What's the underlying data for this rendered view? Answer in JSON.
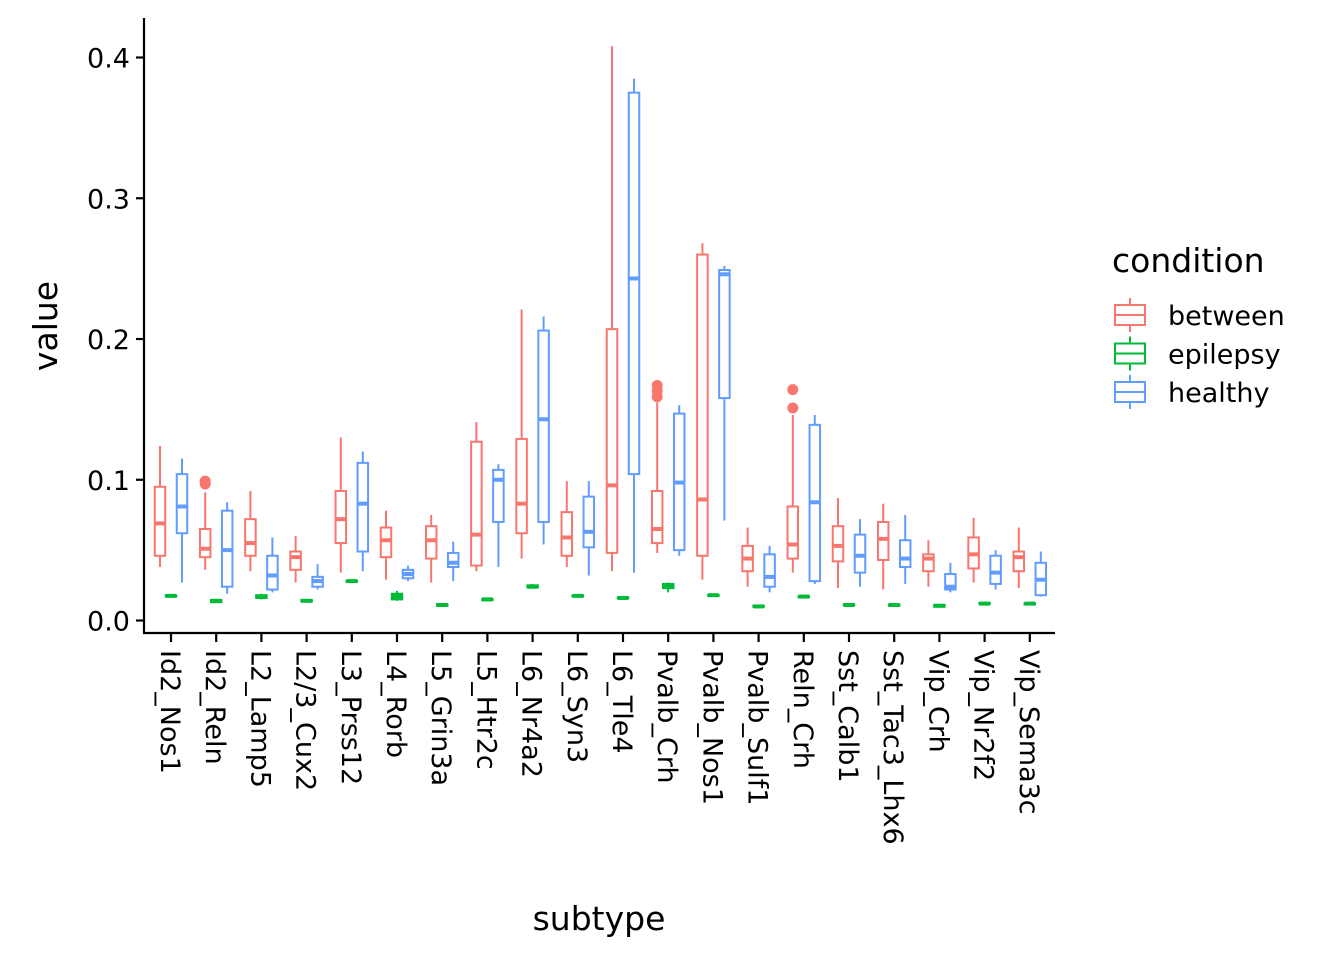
{
  "chart_data": {
    "type": "boxplot",
    "xlabel": "subtype",
    "ylabel": "value",
    "ylim": [
      -0.01,
      0.43
    ],
    "yticks": [
      "0.0",
      "0.1",
      "0.2",
      "0.3",
      "0.4"
    ],
    "categories": [
      "Id2_Nos1",
      "Id2_Reln",
      "L2_Lamp5",
      "L2/3_Cux2",
      "L3_Prss12",
      "L4_Rorb",
      "L5_Grin3a",
      "L5_Htr2c",
      "L6_Nr4a2",
      "L6_Syn3",
      "L6_Tle4",
      "Pvalb_Crh",
      "Pvalb_Nos1",
      "Pvalb_Sulf1",
      "Reln_Crh",
      "Sst_Calb1",
      "Sst_Tac3_Lhx6",
      "Vip_Crh",
      "Vip_Nr2f2",
      "Vip_Sema3c"
    ],
    "legend": {
      "title": "condition",
      "position": "right",
      "entries": [
        {
          "name": "between",
          "color": "#F8766D"
        },
        {
          "name": "epilepsy",
          "color": "#00BA38"
        },
        {
          "name": "healthy",
          "color": "#619CFF"
        }
      ]
    },
    "series": [
      {
        "name": "between",
        "color": "#F8766D",
        "boxes": [
          {
            "category": "Id2_Nos1",
            "min": 0.038,
            "q1": 0.046,
            "median": 0.069,
            "q3": 0.095,
            "max": 0.124,
            "outliers": []
          },
          {
            "category": "Id2_Reln",
            "min": 0.036,
            "q1": 0.045,
            "median": 0.051,
            "q3": 0.065,
            "max": 0.091,
            "outliers": [
              0.097,
              0.099
            ]
          },
          {
            "category": "L2_Lamp5",
            "min": 0.035,
            "q1": 0.046,
            "median": 0.055,
            "q3": 0.072,
            "max": 0.092,
            "outliers": []
          },
          {
            "category": "L2/3_Cux2",
            "min": 0.027,
            "q1": 0.036,
            "median": 0.045,
            "q3": 0.049,
            "max": 0.06,
            "outliers": []
          },
          {
            "category": "L3_Prss12",
            "min": 0.034,
            "q1": 0.055,
            "median": 0.072,
            "q3": 0.092,
            "max": 0.13,
            "outliers": []
          },
          {
            "category": "L4_Rorb",
            "min": 0.029,
            "q1": 0.045,
            "median": 0.057,
            "q3": 0.066,
            "max": 0.078,
            "outliers": []
          },
          {
            "category": "L5_Grin3a",
            "min": 0.027,
            "q1": 0.044,
            "median": 0.057,
            "q3": 0.067,
            "max": 0.075,
            "outliers": []
          },
          {
            "category": "L5_Htr2c",
            "min": 0.035,
            "q1": 0.039,
            "median": 0.061,
            "q3": 0.127,
            "max": 0.141,
            "outliers": []
          },
          {
            "category": "L6_Nr4a2",
            "min": 0.044,
            "q1": 0.062,
            "median": 0.083,
            "q3": 0.129,
            "max": 0.221,
            "outliers": []
          },
          {
            "category": "L6_Syn3",
            "min": 0.038,
            "q1": 0.046,
            "median": 0.059,
            "q3": 0.077,
            "max": 0.099,
            "outliers": []
          },
          {
            "category": "L6_Tle4",
            "min": 0.035,
            "q1": 0.048,
            "median": 0.096,
            "q3": 0.207,
            "max": 0.408,
            "outliers": []
          },
          {
            "category": "Pvalb_Crh",
            "min": 0.048,
            "q1": 0.055,
            "median": 0.065,
            "q3": 0.092,
            "max": 0.155,
            "outliers": [
              0.159,
              0.163,
              0.167
            ]
          },
          {
            "category": "Pvalb_Nos1",
            "min": 0.029,
            "q1": 0.046,
            "median": 0.086,
            "q3": 0.26,
            "max": 0.268,
            "outliers": []
          },
          {
            "category": "Pvalb_Sulf1",
            "min": 0.024,
            "q1": 0.035,
            "median": 0.044,
            "q3": 0.053,
            "max": 0.066,
            "outliers": []
          },
          {
            "category": "Reln_Crh",
            "min": 0.034,
            "q1": 0.044,
            "median": 0.054,
            "q3": 0.081,
            "max": 0.146,
            "outliers": [
              0.151,
              0.164
            ]
          },
          {
            "category": "Sst_Calb1",
            "min": 0.023,
            "q1": 0.042,
            "median": 0.053,
            "q3": 0.067,
            "max": 0.087,
            "outliers": []
          },
          {
            "category": "Sst_Tac3_Lhx6",
            "min": 0.022,
            "q1": 0.043,
            "median": 0.058,
            "q3": 0.07,
            "max": 0.083,
            "outliers": []
          },
          {
            "category": "Vip_Crh",
            "min": 0.024,
            "q1": 0.035,
            "median": 0.044,
            "q3": 0.047,
            "max": 0.057,
            "outliers": []
          },
          {
            "category": "Vip_Nr2f2",
            "min": 0.027,
            "q1": 0.037,
            "median": 0.047,
            "q3": 0.059,
            "max": 0.073,
            "outliers": []
          },
          {
            "category": "Vip_Sema3c",
            "min": 0.023,
            "q1": 0.035,
            "median": 0.045,
            "q3": 0.049,
            "max": 0.066,
            "outliers": []
          }
        ]
      },
      {
        "name": "epilepsy",
        "color": "#00BA38",
        "boxes": [
          {
            "category": "Id2_Nos1",
            "min": 0.017,
            "q1": 0.0172,
            "median": 0.0175,
            "q3": 0.0178,
            "max": 0.018,
            "outliers": []
          },
          {
            "category": "Id2_Reln",
            "min": 0.0125,
            "q1": 0.013,
            "median": 0.014,
            "q3": 0.0145,
            "max": 0.015,
            "outliers": []
          },
          {
            "category": "L2_Lamp5",
            "min": 0.015,
            "q1": 0.016,
            "median": 0.017,
            "q3": 0.018,
            "max": 0.019,
            "outliers": []
          },
          {
            "category": "L2/3_Cux2",
            "min": 0.013,
            "q1": 0.0135,
            "median": 0.014,
            "q3": 0.0145,
            "max": 0.015,
            "outliers": []
          },
          {
            "category": "L3_Prss12",
            "min": 0.0275,
            "q1": 0.0278,
            "median": 0.028,
            "q3": 0.0282,
            "max": 0.0285,
            "outliers": []
          },
          {
            "category": "L4_Rorb",
            "min": 0.014,
            "q1": 0.015,
            "median": 0.017,
            "q3": 0.019,
            "max": 0.021,
            "outliers": []
          },
          {
            "category": "L5_Grin3a",
            "min": 0.01,
            "q1": 0.0105,
            "median": 0.011,
            "q3": 0.0115,
            "max": 0.012,
            "outliers": []
          },
          {
            "category": "L5_Htr2c",
            "min": 0.0145,
            "q1": 0.0148,
            "median": 0.015,
            "q3": 0.0152,
            "max": 0.0155,
            "outliers": []
          },
          {
            "category": "L6_Nr4a2",
            "min": 0.023,
            "q1": 0.0235,
            "median": 0.024,
            "q3": 0.025,
            "max": 0.026,
            "outliers": []
          },
          {
            "category": "L6_Syn3",
            "min": 0.017,
            "q1": 0.0172,
            "median": 0.0175,
            "q3": 0.0178,
            "max": 0.018,
            "outliers": []
          },
          {
            "category": "L6_Tle4",
            "min": 0.0155,
            "q1": 0.0158,
            "median": 0.016,
            "q3": 0.0165,
            "max": 0.0175,
            "outliers": []
          },
          {
            "category": "Pvalb_Crh",
            "min": 0.02,
            "q1": 0.023,
            "median": 0.025,
            "q3": 0.026,
            "max": 0.027,
            "outliers": []
          },
          {
            "category": "Pvalb_Nos1",
            "min": 0.0175,
            "q1": 0.0178,
            "median": 0.018,
            "q3": 0.0182,
            "max": 0.0185,
            "outliers": []
          },
          {
            "category": "Pvalb_Sulf1",
            "min": 0.0095,
            "q1": 0.0098,
            "median": 0.01,
            "q3": 0.0105,
            "max": 0.011,
            "outliers": []
          },
          {
            "category": "Reln_Crh",
            "min": 0.0165,
            "q1": 0.0168,
            "median": 0.017,
            "q3": 0.0172,
            "max": 0.0175,
            "outliers": []
          },
          {
            "category": "Sst_Calb1",
            "min": 0.0105,
            "q1": 0.0108,
            "median": 0.011,
            "q3": 0.0115,
            "max": 0.012,
            "outliers": []
          },
          {
            "category": "Sst_Tac3_Lhx6",
            "min": 0.0105,
            "q1": 0.0108,
            "median": 0.011,
            "q3": 0.0112,
            "max": 0.0115,
            "outliers": []
          },
          {
            "category": "Vip_Crh",
            "min": 0.0095,
            "q1": 0.0098,
            "median": 0.0105,
            "q3": 0.011,
            "max": 0.0115,
            "outliers": []
          },
          {
            "category": "Vip_Nr2f2",
            "min": 0.0115,
            "q1": 0.0118,
            "median": 0.012,
            "q3": 0.0125,
            "max": 0.013,
            "outliers": []
          },
          {
            "category": "Vip_Sema3c",
            "min": 0.0115,
            "q1": 0.0118,
            "median": 0.012,
            "q3": 0.0122,
            "max": 0.0125,
            "outliers": []
          }
        ]
      },
      {
        "name": "healthy",
        "color": "#619CFF",
        "boxes": [
          {
            "category": "Id2_Nos1",
            "min": 0.027,
            "q1": 0.062,
            "median": 0.081,
            "q3": 0.104,
            "max": 0.115,
            "outliers": []
          },
          {
            "category": "Id2_Reln",
            "min": 0.019,
            "q1": 0.024,
            "median": 0.05,
            "q3": 0.078,
            "max": 0.084,
            "outliers": []
          },
          {
            "category": "L2_Lamp5",
            "min": 0.02,
            "q1": 0.022,
            "median": 0.032,
            "q3": 0.046,
            "max": 0.059,
            "outliers": []
          },
          {
            "category": "L2/3_Cux2",
            "min": 0.022,
            "q1": 0.024,
            "median": 0.028,
            "q3": 0.031,
            "max": 0.04,
            "outliers": []
          },
          {
            "category": "L3_Prss12",
            "min": 0.035,
            "q1": 0.049,
            "median": 0.083,
            "q3": 0.112,
            "max": 0.12,
            "outliers": []
          },
          {
            "category": "L4_Rorb",
            "min": 0.028,
            "q1": 0.03,
            "median": 0.033,
            "q3": 0.036,
            "max": 0.039,
            "outliers": []
          },
          {
            "category": "L5_Grin3a",
            "min": 0.028,
            "q1": 0.038,
            "median": 0.041,
            "q3": 0.048,
            "max": 0.056,
            "outliers": []
          },
          {
            "category": "L5_Htr2c",
            "min": 0.038,
            "q1": 0.07,
            "median": 0.1,
            "q3": 0.107,
            "max": 0.111,
            "outliers": []
          },
          {
            "category": "L6_Nr4a2",
            "min": 0.054,
            "q1": 0.07,
            "median": 0.143,
            "q3": 0.206,
            "max": 0.216,
            "outliers": []
          },
          {
            "category": "L6_Syn3",
            "min": 0.032,
            "q1": 0.052,
            "median": 0.063,
            "q3": 0.088,
            "max": 0.099,
            "outliers": []
          },
          {
            "category": "L6_Tle4",
            "min": 0.034,
            "q1": 0.104,
            "median": 0.243,
            "q3": 0.375,
            "max": 0.385,
            "outliers": []
          },
          {
            "category": "Pvalb_Crh",
            "min": 0.046,
            "q1": 0.05,
            "median": 0.098,
            "q3": 0.147,
            "max": 0.153,
            "outliers": []
          },
          {
            "category": "Pvalb_Nos1",
            "min": 0.071,
            "q1": 0.158,
            "median": 0.246,
            "q3": 0.249,
            "max": 0.252,
            "outliers": []
          },
          {
            "category": "Pvalb_Sulf1",
            "min": 0.02,
            "q1": 0.024,
            "median": 0.031,
            "q3": 0.047,
            "max": 0.053,
            "outliers": []
          },
          {
            "category": "Reln_Crh",
            "min": 0.026,
            "q1": 0.028,
            "median": 0.084,
            "q3": 0.139,
            "max": 0.146,
            "outliers": []
          },
          {
            "category": "Sst_Calb1",
            "min": 0.024,
            "q1": 0.034,
            "median": 0.046,
            "q3": 0.061,
            "max": 0.072,
            "outliers": []
          },
          {
            "category": "Sst_Tac3_Lhx6",
            "min": 0.026,
            "q1": 0.038,
            "median": 0.044,
            "q3": 0.057,
            "max": 0.075,
            "outliers": []
          },
          {
            "category": "Vip_Crh",
            "min": 0.02,
            "q1": 0.022,
            "median": 0.024,
            "q3": 0.033,
            "max": 0.041,
            "outliers": []
          },
          {
            "category": "Vip_Nr2f2",
            "min": 0.022,
            "q1": 0.026,
            "median": 0.034,
            "q3": 0.046,
            "max": 0.05,
            "outliers": []
          },
          {
            "category": "Vip_Sema3c",
            "min": 0.017,
            "q1": 0.018,
            "median": 0.029,
            "q3": 0.041,
            "max": 0.049,
            "outliers": []
          }
        ]
      }
    ]
  }
}
